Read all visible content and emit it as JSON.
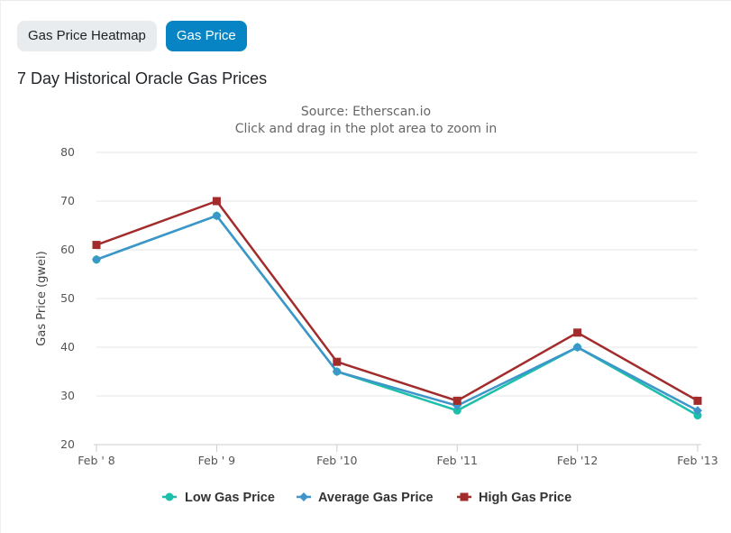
{
  "tabs": [
    {
      "label": "Gas Price Heatmap",
      "active": false
    },
    {
      "label": "Gas Price",
      "active": true
    }
  ],
  "heading": "7 Day Historical Oracle Gas Prices",
  "colors": {
    "low": "#1cbfaa",
    "average": "#3d95c9",
    "high": "#a22c2c",
    "accent": "#0784c3"
  },
  "chart_data": {
    "type": "line",
    "subtitle_lines": [
      "Source: Etherscan.io",
      "Click and drag in the plot area to zoom in"
    ],
    "ylabel": "Gas Price (gwei)",
    "xlabel": "",
    "ylim": [
      20,
      80
    ],
    "yticks": [
      20,
      30,
      40,
      50,
      60,
      70,
      80
    ],
    "categories": [
      "Feb ' 8",
      "Feb ' 9",
      "Feb '10",
      "Feb '11",
      "Feb '12",
      "Feb '13"
    ],
    "grid": true,
    "legend_position": "bottom-center",
    "series": [
      {
        "name": "Low Gas Price",
        "key": "low",
        "marker": "circle",
        "values": [
          58,
          67,
          35,
          27,
          40,
          26
        ]
      },
      {
        "name": "Average Gas Price",
        "key": "average",
        "marker": "diamond",
        "values": [
          58,
          67,
          35,
          28,
          40,
          27
        ]
      },
      {
        "name": "High Gas Price",
        "key": "high",
        "marker": "square",
        "values": [
          61,
          70,
          37,
          29,
          43,
          29
        ]
      }
    ]
  }
}
